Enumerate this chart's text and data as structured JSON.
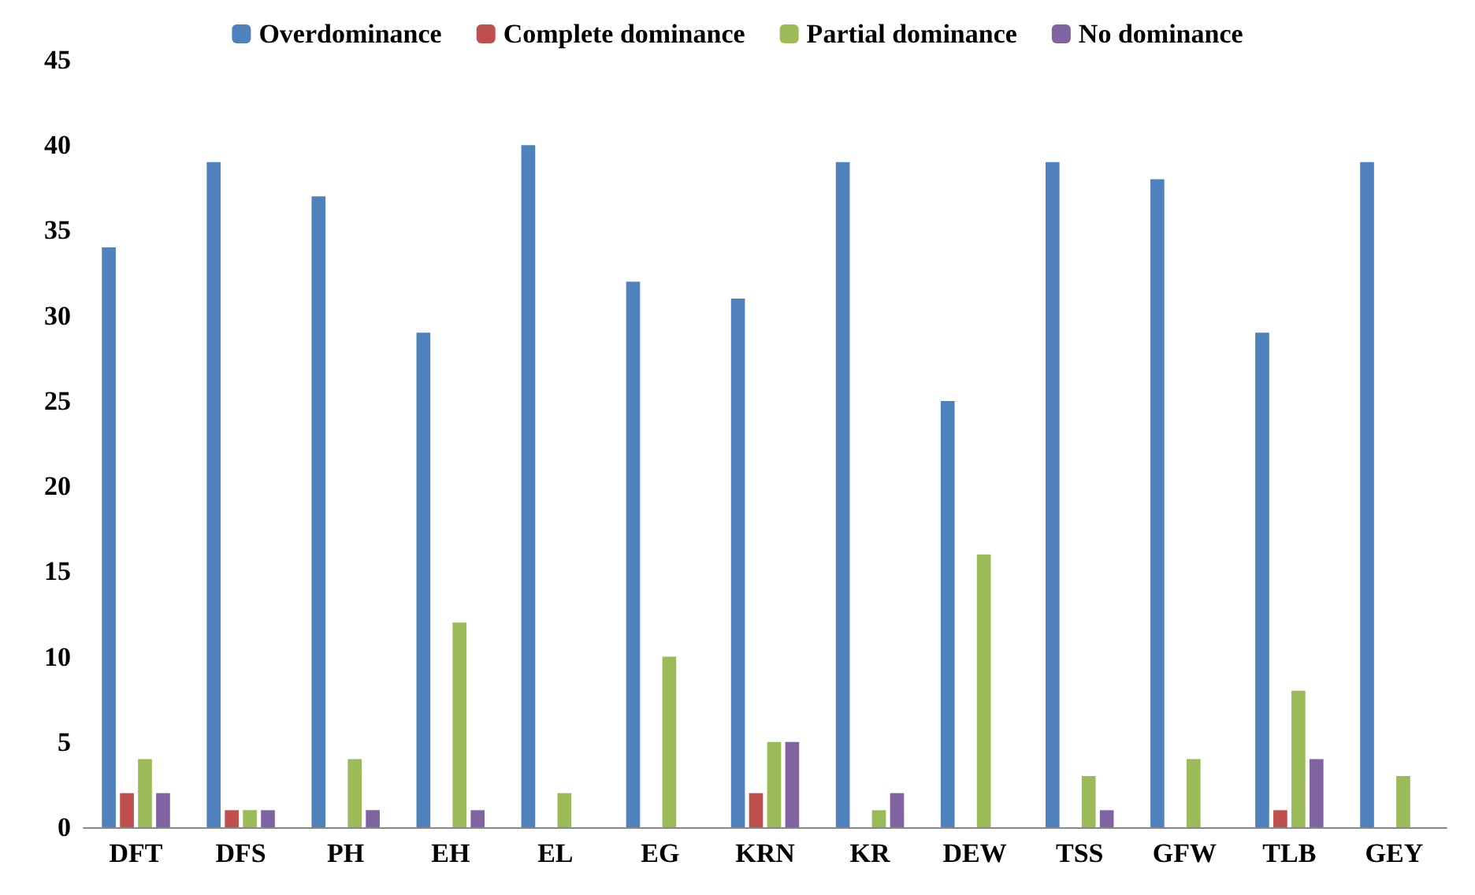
{
  "chart_data": {
    "type": "bar",
    "categories": [
      "DFT",
      "DFS",
      "PH",
      "EH",
      "EL",
      "EG",
      "KRN",
      "KR",
      "DEW",
      "TSS",
      "GFW",
      "TLB",
      "GEY"
    ],
    "series": [
      {
        "name": "Overdominance",
        "color": "#4f81bd",
        "values": [
          34,
          39,
          37,
          29,
          40,
          32,
          31,
          39,
          25,
          39,
          38,
          29,
          39
        ]
      },
      {
        "name": "Complete dominance",
        "color": "#c0504d",
        "values": [
          2,
          1,
          0,
          0,
          0,
          0,
          2,
          0,
          0,
          0,
          0,
          1,
          0
        ]
      },
      {
        "name": "Partial dominance",
        "color": "#9bbb59",
        "values": [
          4,
          1,
          4,
          12,
          2,
          10,
          5,
          1,
          16,
          3,
          4,
          8,
          3
        ]
      },
      {
        "name": "No dominance",
        "color": "#8064a2",
        "values": [
          2,
          1,
          1,
          1,
          0,
          0,
          5,
          2,
          0,
          1,
          0,
          4,
          0
        ]
      }
    ],
    "ylim": [
      0,
      45
    ],
    "yticks": [
      0,
      5,
      10,
      15,
      20,
      25,
      30,
      35,
      40,
      45
    ],
    "grid": false,
    "legend": "top"
  }
}
